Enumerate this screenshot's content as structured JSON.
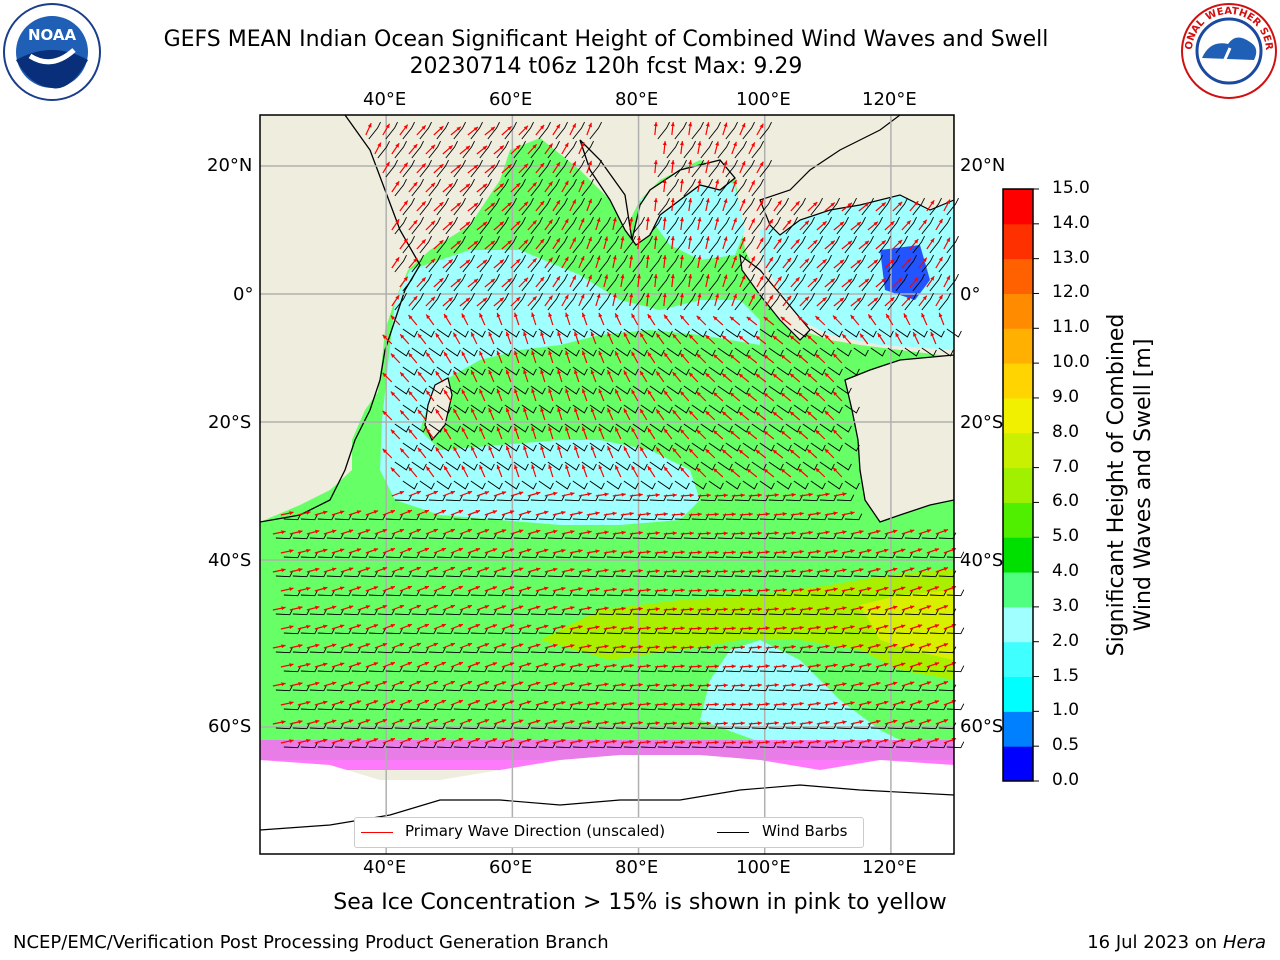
{
  "title": {
    "line1": "GEFS MEAN Indian Ocean Significant Height of Combined Wind Waves and Swell",
    "line2": "20230714 t06z 120h fcst   Max: 9.29"
  },
  "map": {
    "lon_labels": [
      "40°E",
      "60°E",
      "80°E",
      "100°E",
      "120°E"
    ],
    "lat_labels": [
      "20°N",
      "0°",
      "20°S",
      "40°S",
      "60°S"
    ],
    "colors": {
      "land": "#efedde",
      "ocean_main": "#66ff66",
      "swell_light": "#99ffff",
      "ice_pink": "#ff66ff",
      "wave_arrow": "#ff0000",
      "barb": "#000000"
    }
  },
  "legend": {
    "wave_label": "Primary Wave Direction (unscaled)",
    "barb_label": "Wind Barbs"
  },
  "colorbar": {
    "title_line1": "Significant Height of Combined",
    "title_line2": "Wind Waves and Swell [m]",
    "ticks": [
      "0.0",
      "0.5",
      "1.0",
      "1.5",
      "2.0",
      "3.0",
      "4.0",
      "5.0",
      "6.0",
      "7.0",
      "8.0",
      "9.0",
      "10.0",
      "11.0",
      "12.0",
      "13.0",
      "14.0",
      "15.0"
    ],
    "colors": [
      "#0000ff",
      "#0080ff",
      "#00ffff",
      "#40ffff",
      "#a0ffff",
      "#50ff80",
      "#00e000",
      "#50ef00",
      "#a0f000",
      "#c8f000",
      "#f0f000",
      "#ffd400",
      "#ffb000",
      "#ff8c00",
      "#ff6000",
      "#ff3000",
      "#ff0000"
    ]
  },
  "caption": "Sea Ice Concentration > 15% is shown in pink to yellow",
  "footer": {
    "left": "NCEP/EMC/Verification Post Processing Product Generation Branch",
    "right_date": "16 Jul 2023 on ",
    "right_host": "Hera"
  },
  "logos": {
    "noaa_text": "NOAA",
    "nws_text": "NATIONAL WEATHER SERVICE"
  }
}
